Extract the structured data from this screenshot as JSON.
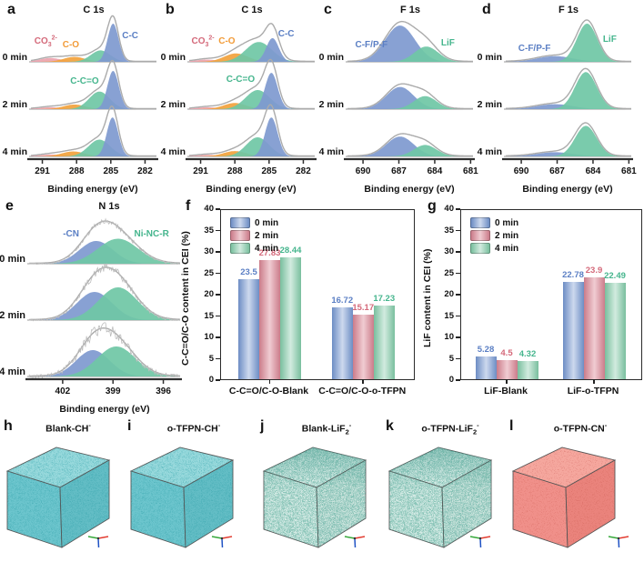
{
  "peak_colors": {
    "blue": "#7e99cf",
    "green": "#6fc7a5",
    "orange": "#f2a23c",
    "pink": "#eba3ae"
  },
  "palettes": {
    "blue": {
      "edge": "#6d8dc4",
      "light": "#cdd9ee",
      "label": "#5b7fc4"
    },
    "pink": {
      "edge": "#cb7c8a",
      "light": "#f0ccd2",
      "label": "#d4697a"
    },
    "green": {
      "edge": "#79bf9e",
      "light": "#d2ebdf",
      "label": "#45b58d"
    }
  },
  "chart_data": [
    {
      "letter": "a",
      "type": "area",
      "title": "C 1s",
      "xlabel": "Binding energy (eV)",
      "xdomain": [
        292.0,
        281.0
      ],
      "xticks": [
        291,
        288,
        285,
        282
      ],
      "row_labels": [
        "0 min",
        "2 min",
        "4 min"
      ],
      "rows": [
        {
          "noise": 0,
          "peaks": [
            {
              "name": "CO3 2-",
              "c": 290.3,
              "s": 0.95,
              "a": 0.1,
              "color": "pink"
            },
            {
              "name": "C-O",
              "c": 288.2,
              "s": 0.95,
              "a": 0.13,
              "color": "orange"
            },
            {
              "name": "C-C=O",
              "c": 285.9,
              "s": 0.85,
              "a": 0.3,
              "color": "green"
            },
            {
              "name": "C-C",
              "c": 284.8,
              "s": 0.48,
              "a": 1.0,
              "color": "blue"
            }
          ]
        },
        {
          "noise": 0,
          "peaks": [
            {
              "name": "CO3 2-",
              "c": 290.3,
              "s": 0.95,
              "a": 0.05,
              "color": "pink"
            },
            {
              "name": "C-O",
              "c": 288.2,
              "s": 0.95,
              "a": 0.12,
              "color": "orange"
            },
            {
              "name": "C-C=O",
              "c": 286.0,
              "s": 0.9,
              "a": 0.46,
              "color": "green"
            },
            {
              "name": "C-C",
              "c": 284.8,
              "s": 0.5,
              "a": 1.0,
              "color": "blue"
            }
          ]
        },
        {
          "noise": 0,
          "peaks": [
            {
              "name": "CO3 2-",
              "c": 290.3,
              "s": 0.95,
              "a": 0.05,
              "color": "pink"
            },
            {
              "name": "C-O",
              "c": 288.3,
              "s": 1.0,
              "a": 0.13,
              "color": "orange"
            },
            {
              "name": "C-C=O",
              "c": 286.0,
              "s": 0.95,
              "a": 0.44,
              "color": "green"
            },
            {
              "name": "C-C",
              "c": 284.85,
              "s": 0.5,
              "a": 1.02,
              "color": "blue"
            }
          ]
        }
      ],
      "labels": [
        {
          "row": 0,
          "x": 290.7,
          "dy": 22,
          "color": "#d4697a",
          "segments": [
            {
              "t": "CO"
            },
            {
              "t": "3",
              "sub": true
            },
            {
              "t": "2-",
              "sup": true
            }
          ]
        },
        {
          "row": 0,
          "x": 288.5,
          "dy": 26,
          "color": "#f29b38",
          "segments": [
            {
              "t": "C-O"
            }
          ]
        },
        {
          "row": 0,
          "x": 283.3,
          "dy": 16,
          "color": "#5b7fc4",
          "segments": [
            {
              "t": "C-C"
            }
          ]
        },
        {
          "row": 1,
          "x": 287.3,
          "dy": 14,
          "color": "#45b58d",
          "segments": [
            {
              "t": "C-C=O"
            }
          ]
        }
      ]
    },
    {
      "letter": "b",
      "type": "area",
      "title": "C 1s",
      "xlabel": "Binding energy (eV)",
      "xdomain": [
        292.0,
        281.0
      ],
      "xticks": [
        291,
        288,
        285,
        282
      ],
      "row_labels": [
        "0 min",
        "2 min",
        "4 min"
      ],
      "rows": [
        {
          "noise": 0,
          "peaks": [
            {
              "name": "CO3 2-",
              "c": 290.5,
              "s": 0.95,
              "a": 0.06,
              "color": "pink"
            },
            {
              "name": "C-O",
              "c": 287.9,
              "s": 1.05,
              "a": 0.22,
              "color": "orange"
            },
            {
              "name": "C-C=O",
              "c": 285.9,
              "s": 1.15,
              "a": 0.52,
              "color": "green"
            },
            {
              "name": "C-C",
              "c": 284.7,
              "s": 0.55,
              "a": 0.62,
              "color": "blue"
            }
          ]
        },
        {
          "noise": 0,
          "peaks": [
            {
              "name": "CO3 2-",
              "c": 290.4,
              "s": 0.95,
              "a": 0.05,
              "color": "pink"
            },
            {
              "name": "C-O",
              "c": 288.0,
              "s": 1.0,
              "a": 0.16,
              "color": "orange"
            },
            {
              "name": "C-C=O",
              "c": 286.0,
              "s": 1.05,
              "a": 0.5,
              "color": "green"
            },
            {
              "name": "C-C",
              "c": 284.8,
              "s": 0.55,
              "a": 0.95,
              "color": "blue"
            }
          ]
        },
        {
          "noise": 0,
          "peaks": [
            {
              "name": "CO3 2-",
              "c": 290.4,
              "s": 0.95,
              "a": 0.04,
              "color": "pink"
            },
            {
              "name": "C-O",
              "c": 288.0,
              "s": 1.0,
              "a": 0.14,
              "color": "orange"
            },
            {
              "name": "C-C=O",
              "c": 286.0,
              "s": 1.0,
              "a": 0.5,
              "color": "green"
            },
            {
              "name": "C-C",
              "c": 284.8,
              "s": 0.55,
              "a": 1.02,
              "color": "blue"
            }
          ]
        }
      ],
      "labels": [
        {
          "row": 0,
          "x": 290.8,
          "dy": 22,
          "color": "#d4697a",
          "segments": [
            {
              "t": "CO"
            },
            {
              "t": "3",
              "sub": true
            },
            {
              "t": "2-",
              "sup": true
            }
          ]
        },
        {
          "row": 0,
          "x": 288.7,
          "dy": 22,
          "color": "#f29b38",
          "segments": [
            {
              "t": "C-O"
            }
          ]
        },
        {
          "row": 0,
          "x": 283.5,
          "dy": 14,
          "color": "#5b7fc4",
          "segments": [
            {
              "t": "C-C"
            }
          ]
        },
        {
          "row": 1,
          "x": 287.5,
          "dy": 12,
          "color": "#45b58d",
          "segments": [
            {
              "t": "C-C=O"
            }
          ]
        }
      ]
    },
    {
      "letter": "c",
      "type": "area",
      "title": "F 1s",
      "xlabel": "Binding energy (eV)",
      "xdomain": [
        691.3,
        680.8
      ],
      "xticks": [
        690,
        687,
        684,
        681
      ],
      "row_labels": [
        "0 min",
        "2 min",
        "4 min"
      ],
      "rows": [
        {
          "noise": 0,
          "peaks": [
            {
              "name": "C-F/P-F",
              "c": 686.9,
              "s": 1.25,
              "a": 0.95,
              "color": "blue"
            },
            {
              "name": "LiF",
              "c": 684.7,
              "s": 1.0,
              "a": 0.4,
              "color": "green"
            }
          ]
        },
        {
          "noise": 0,
          "peaks": [
            {
              "name": "C-F/P-F",
              "c": 686.9,
              "s": 1.15,
              "a": 0.58,
              "color": "blue"
            },
            {
              "name": "LiF",
              "c": 684.8,
              "s": 0.95,
              "a": 0.34,
              "color": "green"
            }
          ]
        },
        {
          "noise": 0,
          "peaks": [
            {
              "name": "C-F/P-F",
              "c": 686.9,
              "s": 1.15,
              "a": 0.52,
              "color": "blue"
            },
            {
              "name": "LiF",
              "c": 684.8,
              "s": 0.95,
              "a": 0.3,
              "color": "green"
            }
          ]
        }
      ],
      "labels": [
        {
          "row": 0,
          "x": 689.3,
          "dy": 26,
          "color": "#5b7fc4",
          "segments": [
            {
              "t": "C-F/P-F"
            }
          ]
        },
        {
          "row": 0,
          "x": 682.9,
          "dy": 24,
          "color": "#45b58d",
          "segments": [
            {
              "t": "LiF"
            }
          ]
        }
      ]
    },
    {
      "letter": "d",
      "type": "area",
      "title": "F 1s",
      "xlabel": "Binding energy (eV)",
      "xdomain": [
        691.3,
        680.8
      ],
      "xticks": [
        690,
        687,
        684,
        681
      ],
      "row_labels": [
        "0 min",
        "2 min",
        "4 min"
      ],
      "rows": [
        {
          "noise": 0,
          "peaks": [
            {
              "name": "C-F/P-F",
              "c": 687.2,
              "s": 1.5,
              "a": 0.15,
              "color": "blue"
            },
            {
              "name": "LiF",
              "c": 684.5,
              "s": 0.85,
              "a": 1.0,
              "color": "green"
            }
          ]
        },
        {
          "noise": 0,
          "peaks": [
            {
              "name": "C-F/P-F",
              "c": 687.2,
              "s": 1.5,
              "a": 0.13,
              "color": "blue"
            },
            {
              "name": "LiF",
              "c": 684.6,
              "s": 0.9,
              "a": 0.97,
              "color": "green"
            }
          ]
        },
        {
          "noise": 0,
          "peaks": [
            {
              "name": "C-F/P-F",
              "c": 687.2,
              "s": 1.5,
              "a": 0.11,
              "color": "blue"
            },
            {
              "name": "LiF",
              "c": 684.6,
              "s": 0.9,
              "a": 0.8,
              "color": "green"
            }
          ]
        }
      ],
      "labels": [
        {
          "row": 0,
          "x": 688.9,
          "dy": 30,
          "color": "#5b7fc4",
          "segments": [
            {
              "t": "C-F/P-F"
            }
          ]
        },
        {
          "row": 0,
          "x": 682.6,
          "dy": 20,
          "color": "#45b58d",
          "segments": [
            {
              "t": "LiF"
            }
          ]
        }
      ]
    },
    {
      "letter": "e",
      "type": "area",
      "title": "N 1s",
      "xlabel": "Binding energy (eV)",
      "xdomain": [
        404.0,
        395.0
      ],
      "xticks": [
        402,
        399,
        396
      ],
      "row_labels": [
        "0 min",
        "2 min",
        "4 min"
      ],
      "rows": [
        {
          "noise": 0.05,
          "peaks": [
            {
              "name": "-CN",
              "c": 400.0,
              "s": 1.0,
              "a": 0.5,
              "color": "blue"
            },
            {
              "name": "Ni-NC-R",
              "c": 398.7,
              "s": 1.2,
              "a": 0.55,
              "color": "green"
            }
          ]
        },
        {
          "noise": 0.07,
          "peaks": [
            {
              "name": "-CN",
              "c": 400.1,
              "s": 1.05,
              "a": 0.62,
              "color": "blue"
            },
            {
              "name": "Ni-NC-R",
              "c": 398.7,
              "s": 1.15,
              "a": 0.72,
              "color": "green"
            }
          ]
        },
        {
          "noise": 0.11,
          "peaks": [
            {
              "name": "-CN",
              "c": 400.2,
              "s": 1.0,
              "a": 0.58,
              "color": "blue"
            },
            {
              "name": "Ni-NC-R",
              "c": 398.8,
              "s": 1.15,
              "a": 0.66,
              "color": "green"
            }
          ]
        }
      ],
      "labels": [
        {
          "row": 0,
          "x": 401.5,
          "dy": 20,
          "color": "#5b7fc4",
          "segments": [
            {
              "t": "-CN"
            }
          ]
        },
        {
          "row": 0,
          "x": 396.7,
          "dy": 20,
          "color": "#45b58d",
          "segments": [
            {
              "t": "Ni-NC-R"
            }
          ]
        }
      ]
    },
    {
      "letter": "f",
      "type": "bar",
      "ylabel": "C-C=O/C-O content in CEI (%)",
      "ymin": 0,
      "ymax": 40,
      "ystep": 5,
      "yticks": [
        0,
        5,
        10,
        15,
        20,
        25,
        30,
        35,
        40
      ],
      "legend": [
        "0 min",
        "2 min",
        "4 min"
      ],
      "legend_position": "top-left",
      "categories": [
        "C-C=O/C-O-Blank",
        "C-C=O/C-O-o-TFPN"
      ],
      "series": [
        {
          "name": "0 min",
          "palette": "blue",
          "values": [
            23.5,
            16.72
          ]
        },
        {
          "name": "2 min",
          "palette": "pink",
          "values": [
            27.83,
            15.17
          ]
        },
        {
          "name": "4 min",
          "palette": "green",
          "values": [
            28.44,
            17.23
          ]
        }
      ]
    },
    {
      "letter": "g",
      "type": "bar",
      "ylabel": "LiF content in CEI (%)",
      "ymin": 0,
      "ymax": 40,
      "ystep": 5,
      "yticks": [
        0,
        5,
        10,
        15,
        20,
        25,
        30,
        35,
        40
      ],
      "legend": [
        "0 min",
        "2 min",
        "4 min"
      ],
      "legend_position": "top-left",
      "categories": [
        "LiF-Blank",
        "LiF-o-TFPN"
      ],
      "series": [
        {
          "name": "0 min",
          "palette": "blue",
          "values": [
            5.28,
            22.78
          ]
        },
        {
          "name": "2 min",
          "palette": "pink",
          "values": [
            4.5,
            23.9
          ]
        },
        {
          "name": "4 min",
          "palette": "green",
          "values": [
            4.32,
            22.49
          ]
        }
      ]
    }
  ],
  "cubes": [
    {
      "letter": "h",
      "style": "teal",
      "label": [
        {
          "t": "Blank-CH"
        },
        {
          "t": "-",
          "sup": true
        }
      ]
    },
    {
      "letter": "i",
      "style": "teal",
      "label": [
        {
          "t": "o-TFPN-CH"
        },
        {
          "t": "-",
          "sup": true
        }
      ]
    },
    {
      "letter": "j",
      "style": "pale",
      "label": [
        {
          "t": "Blank-LiF"
        },
        {
          "t": "2",
          "sub": true
        },
        {
          "t": "-",
          "sup": true
        }
      ]
    },
    {
      "letter": "k",
      "style": "pale",
      "label": [
        {
          "t": "o-TFPN-LiF"
        },
        {
          "t": "2",
          "sub": true
        },
        {
          "t": "-",
          "sup": true
        }
      ]
    },
    {
      "letter": "l",
      "style": "red",
      "label": [
        {
          "t": "o-TFPN-CN"
        },
        {
          "t": "-",
          "sup": true
        }
      ]
    }
  ],
  "cube_styles": {
    "teal": {
      "top": "#97d9dc",
      "left": "#6cc5cd",
      "right": "#63bdc5",
      "speckle": "#2f9fa6",
      "filter": "spk-mid",
      "op": 0.38,
      "cloud": false
    },
    "pale": {
      "top": "#e2f2ed",
      "left": "#d3eae4",
      "right": "#c9e3dc",
      "speckle": "#47a392",
      "filter": "spk-dense",
      "op": 0.5,
      "cloud": true
    },
    "red": {
      "top": "#f5a79e",
      "left": "#f0908a",
      "right": "#ea837c",
      "speckle": "#c9574e",
      "filter": "spk-sparse",
      "op": 0.3,
      "cloud": false
    }
  },
  "gizmo": {
    "x_color": "#e23c30",
    "y_color": "#35a83a",
    "z_color": "#1f52c4"
  }
}
